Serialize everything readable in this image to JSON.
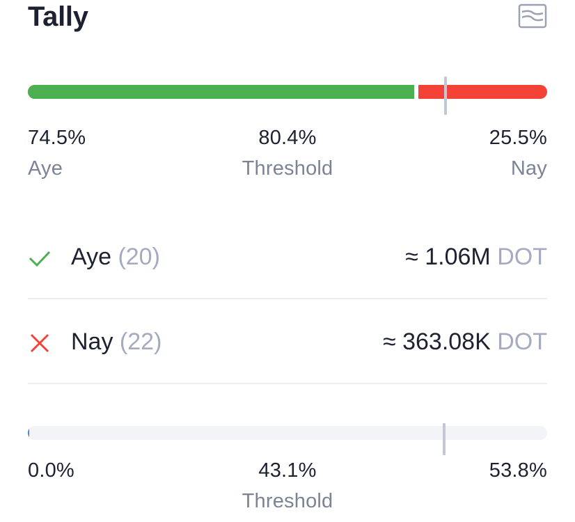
{
  "header": {
    "title": "Tally",
    "history_icon": "chart-lines-icon"
  },
  "approval": {
    "aye_percent_value": 74.5,
    "threshold_percent_value": 80.4,
    "aye_percent": "74.5%",
    "aye_label": "Aye",
    "threshold_percent": "80.4%",
    "threshold_label": "Threshold",
    "nay_percent": "25.5%",
    "nay_label": "Nay",
    "aye_color": "#4caf50",
    "nay_color": "#f44336"
  },
  "votes": {
    "aye": {
      "icon": "check-icon",
      "name": "Aye",
      "count": "(20)",
      "amount": "≈ 1.06M",
      "unit": "DOT"
    },
    "nay": {
      "icon": "close-icon",
      "name": "Nay",
      "count": "(22)",
      "amount": "≈ 363.08K",
      "unit": "DOT"
    }
  },
  "support": {
    "current_percent_value": 0.0,
    "threshold_percent_value": 43.1,
    "max_percent_value": 53.8,
    "current_percent": "0.0%",
    "threshold_percent": "43.1%",
    "threshold_label": "Threshold",
    "max_percent": "53.8%"
  }
}
